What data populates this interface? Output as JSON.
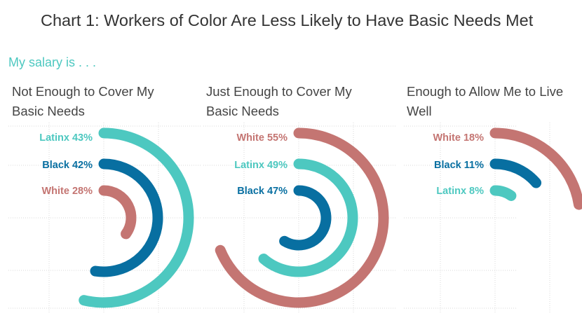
{
  "title": "Chart 1: Workers of Color Are Less Likely to Have Basic Needs Met",
  "subtitle": "My salary is . . .",
  "colors": {
    "Latinx": "#4dc8c0",
    "Black": "#086fa1",
    "White": "#c47572",
    "subtitle": "#4dc8c0",
    "grid": "#d9d9d9"
  },
  "chart_data": {
    "type": "radial-bar",
    "title": "Chart 1: Workers of Color Are Less Likely to Have Basic Needs Met",
    "subtitle": "My salary is . . .",
    "panels": [
      {
        "title": "Not Enough to Cover My Basic Needs",
        "series": [
          {
            "name": "Latinx",
            "value": 43,
            "label": "Latinx 43%"
          },
          {
            "name": "Black",
            "value": 42,
            "label": "Black 42%"
          },
          {
            "name": "White",
            "value": 28,
            "label": "White 28%"
          }
        ]
      },
      {
        "title": "Just Enough to Cover My Basic Needs",
        "series": [
          {
            "name": "White",
            "value": 55,
            "label": "White 55%"
          },
          {
            "name": "Latinx",
            "value": 49,
            "label": "Latinx 49%"
          },
          {
            "name": "Black",
            "value": 47,
            "label": "Black 47%"
          }
        ]
      },
      {
        "title": "Enough to Allow Me to Live Well",
        "series": [
          {
            "name": "White",
            "value": 18,
            "label": "White 18%"
          },
          {
            "name": "Black",
            "value": 11,
            "label": "Black 11%"
          },
          {
            "name": "Latinx",
            "value": 8,
            "label": "Latinx 8%"
          }
        ]
      }
    ],
    "full_circle_value": 80
  }
}
